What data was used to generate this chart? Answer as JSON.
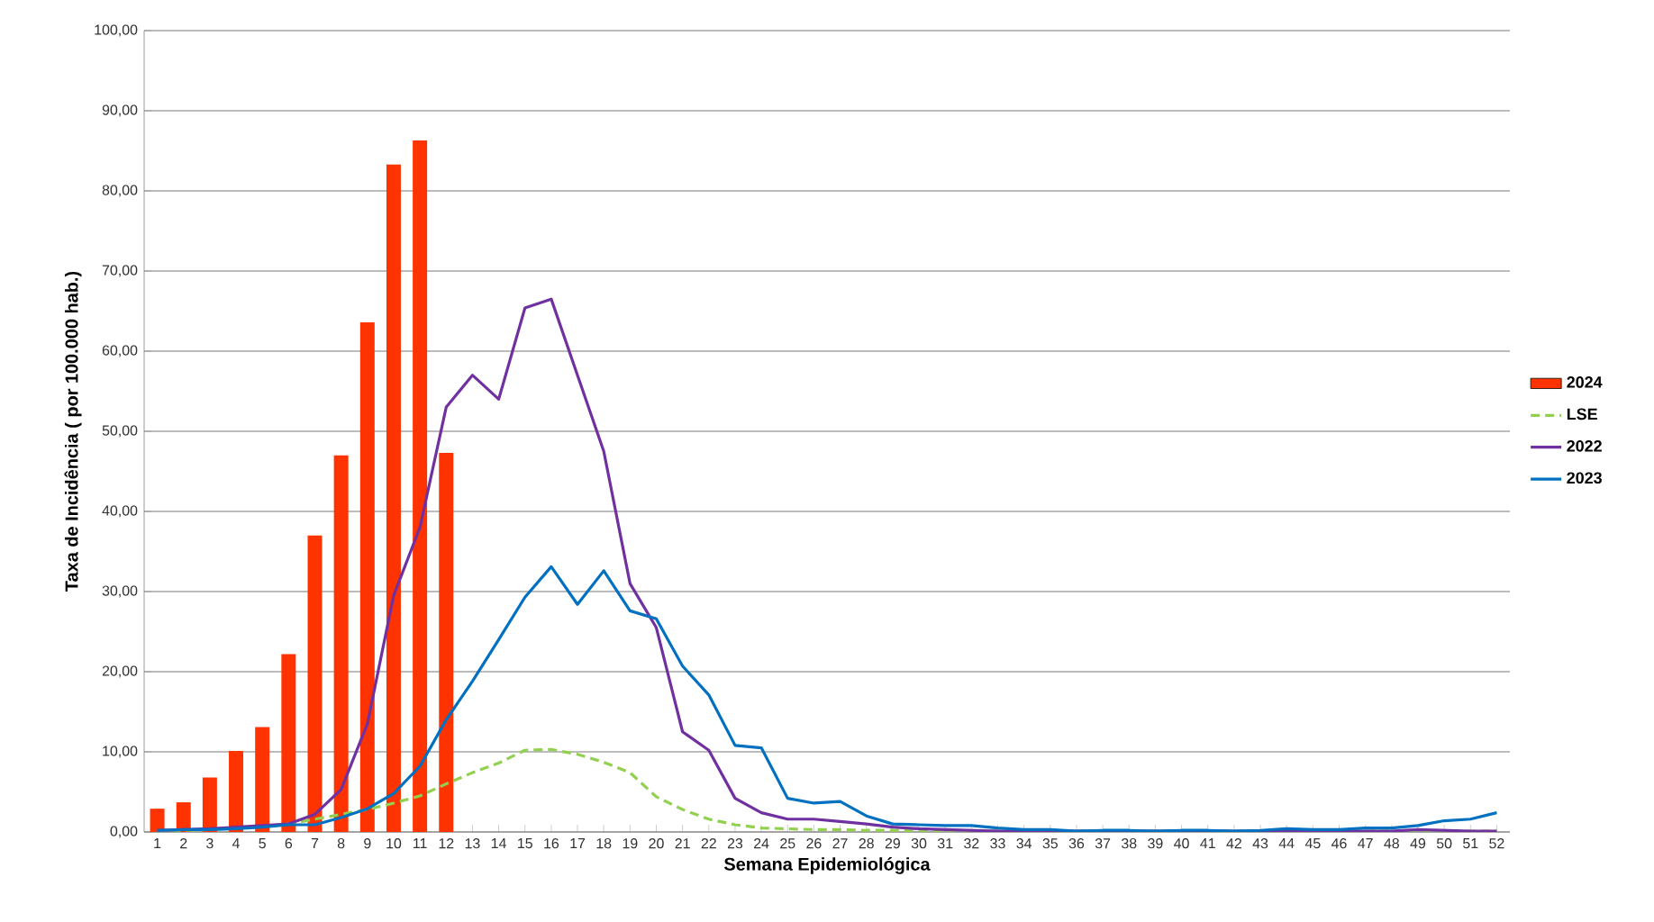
{
  "chart_data": {
    "type": "bar",
    "xlabel": "Semana Epidemiológica",
    "ylabel": "Taxa de Incidência ( por 100.000 hab.)",
    "categories": [
      "1",
      "2",
      "3",
      "4",
      "5",
      "6",
      "7",
      "8",
      "9",
      "10",
      "11",
      "12",
      "13",
      "14",
      "15",
      "16",
      "17",
      "18",
      "19",
      "20",
      "21",
      "22",
      "23",
      "24",
      "25",
      "26",
      "27",
      "28",
      "29",
      "30",
      "31",
      "32",
      "33",
      "34",
      "35",
      "36",
      "37",
      "38",
      "39",
      "40",
      "41",
      "42",
      "43",
      "44",
      "45",
      "46",
      "47",
      "48",
      "49",
      "50",
      "51",
      "52"
    ],
    "ylim": [
      0,
      100
    ],
    "yticks": [
      {
        "value": 0,
        "label": "0,00"
      },
      {
        "value": 10,
        "label": "10,00"
      },
      {
        "value": 20,
        "label": "20,00"
      },
      {
        "value": 30,
        "label": "30,00"
      },
      {
        "value": 40,
        "label": "40,00"
      },
      {
        "value": 50,
        "label": "50,00"
      },
      {
        "value": 60,
        "label": "60,00"
      },
      {
        "value": 70,
        "label": "70,00"
      },
      {
        "value": 80,
        "label": "80,00"
      },
      {
        "value": 90,
        "label": "90,00"
      },
      {
        "value": 100,
        "label": "100,00"
      }
    ],
    "grid": "y",
    "legend": "right",
    "series": [
      {
        "name": "2024",
        "color": "#ff3300",
        "values": [
          2.9,
          3.7,
          6.8,
          10.1,
          13.1,
          22.2,
          37.0,
          47.0,
          63.6,
          83.3,
          86.3,
          47.3,
          null,
          null,
          null,
          null,
          null,
          null,
          null,
          null,
          null,
          null,
          null,
          null,
          null,
          null,
          null,
          null,
          null,
          null,
          null,
          null,
          null,
          null,
          null,
          null,
          null,
          null,
          null,
          null,
          null,
          null,
          null,
          null,
          null,
          null,
          null,
          null,
          null,
          null,
          null,
          null
        ]
      },
      {
        "name": "LSE",
        "type": "line",
        "line_style": "dashed",
        "color": "#92d050",
        "values": [
          0.1,
          0.2,
          0.3,
          0.5,
          0.7,
          1.0,
          1.6,
          2.2,
          2.8,
          3.6,
          4.5,
          6.0,
          7.4,
          8.6,
          10.2,
          10.3,
          9.7,
          8.7,
          7.4,
          4.4,
          2.8,
          1.6,
          0.9,
          0.5,
          0.4,
          0.3,
          0.3,
          0.2,
          0.2,
          0.1,
          0.1,
          0.1,
          0.1,
          0.1,
          0.1,
          0.1,
          0.1,
          0.1,
          0.1,
          0.1,
          0.1,
          0.1,
          0.1,
          0.1,
          0.1,
          0.1,
          0.1,
          0.1,
          0.1,
          0.1,
          0.1,
          0.1
        ]
      },
      {
        "name": "2022",
        "type": "line",
        "line_style": "solid",
        "color": "#7030a0",
        "values": [
          0.2,
          0.3,
          0.4,
          0.6,
          0.8,
          1.0,
          2.2,
          5.3,
          13.5,
          29.5,
          38.0,
          53.0,
          57.0,
          54.0,
          65.4,
          66.5,
          57.0,
          47.5,
          31.0,
          25.5,
          12.5,
          10.2,
          4.2,
          2.4,
          1.6,
          1.6,
          1.3,
          1.0,
          0.6,
          0.4,
          0.3,
          0.2,
          0.1,
          0.1,
          0.1,
          0.1,
          0.1,
          0.1,
          0.1,
          0.1,
          0.1,
          0.1,
          0.1,
          0.1,
          0.1,
          0.1,
          0.1,
          0.1,
          0.3,
          0.2,
          0.1,
          0.1
        ]
      },
      {
        "name": "2023",
        "type": "line",
        "line_style": "solid",
        "color": "#0070c0",
        "values": [
          0.2,
          0.3,
          0.3,
          0.4,
          0.6,
          0.9,
          0.9,
          1.8,
          2.9,
          4.8,
          8.2,
          14.0,
          18.8,
          24.0,
          29.3,
          33.1,
          28.4,
          32.6,
          27.6,
          26.6,
          20.7,
          17.1,
          10.8,
          10.5,
          4.2,
          3.6,
          3.8,
          2.0,
          1.0,
          0.9,
          0.8,
          0.8,
          0.5,
          0.3,
          0.3,
          0.1,
          0.2,
          0.2,
          0.1,
          0.2,
          0.2,
          0.1,
          0.2,
          0.4,
          0.3,
          0.3,
          0.5,
          0.5,
          0.8,
          1.4,
          1.6,
          2.4
        ]
      }
    ]
  }
}
